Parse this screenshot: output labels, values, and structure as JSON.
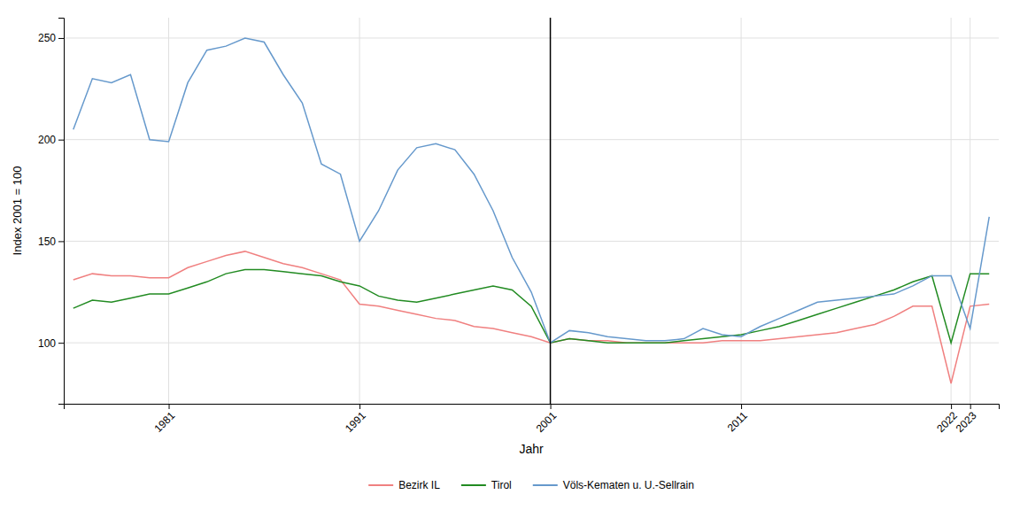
{
  "chart_data": {
    "type": "line",
    "xlabel": "Jahr",
    "ylabel": "Index 2001 = 100",
    "x": [
      1976,
      1977,
      1978,
      1979,
      1980,
      1981,
      1982,
      1983,
      1984,
      1985,
      1986,
      1987,
      1988,
      1989,
      1990,
      1991,
      1992,
      1993,
      1994,
      1995,
      1996,
      1997,
      1998,
      1999,
      2000,
      2001,
      2002,
      2003,
      2004,
      2005,
      2006,
      2007,
      2008,
      2009,
      2010,
      2011,
      2012,
      2013,
      2014,
      2015,
      2016,
      2017,
      2018,
      2019,
      2020,
      2021,
      2022,
      2023,
      2024
    ],
    "series": [
      {
        "name": "Bezirk IL",
        "color": "#F08080",
        "values": [
          131,
          134,
          133,
          133,
          132,
          132,
          137,
          140,
          143,
          145,
          142,
          139,
          137,
          134,
          131,
          119,
          118,
          116,
          114,
          112,
          111,
          108,
          107,
          105,
          103,
          100,
          102,
          101,
          101,
          100,
          100,
          100,
          100,
          100,
          101,
          101,
          101,
          102,
          103,
          104,
          105,
          107,
          109,
          113,
          118,
          118,
          80,
          118,
          119
        ]
      },
      {
        "name": "Tirol",
        "color": "#228B22",
        "values": [
          117,
          121,
          120,
          122,
          124,
          124,
          127,
          130,
          134,
          136,
          136,
          135,
          134,
          133,
          130,
          128,
          123,
          121,
          120,
          122,
          124,
          126,
          128,
          126,
          118,
          100,
          102,
          101,
          100,
          100,
          100,
          100,
          101,
          102,
          103,
          104,
          106,
          108,
          111,
          114,
          117,
          120,
          123,
          126,
          130,
          133,
          100,
          134,
          134
        ]
      },
      {
        "name": "Völs-Kematen u. U.-Sellrain",
        "color": "#6699CC",
        "values": [
          205,
          230,
          228,
          232,
          200,
          199,
          228,
          244,
          246,
          250,
          248,
          232,
          218,
          188,
          183,
          150,
          165,
          185,
          196,
          198,
          195,
          183,
          165,
          142,
          125,
          100,
          106,
          105,
          103,
          102,
          101,
          101,
          102,
          107,
          104,
          103,
          108,
          112,
          116,
          120,
          121,
          122,
          123,
          124,
          128,
          133,
          133,
          107,
          162
        ]
      }
    ],
    "vlines": [
      2001
    ],
    "xlim": [
      1975.5,
      2024.5
    ],
    "ylim": [
      70,
      260
    ],
    "xticks": [
      1981,
      1991,
      2001,
      2011,
      2022,
      2023
    ],
    "yticks": [
      100,
      150,
      200,
      250
    ],
    "grid": true,
    "legend": "bottom"
  }
}
